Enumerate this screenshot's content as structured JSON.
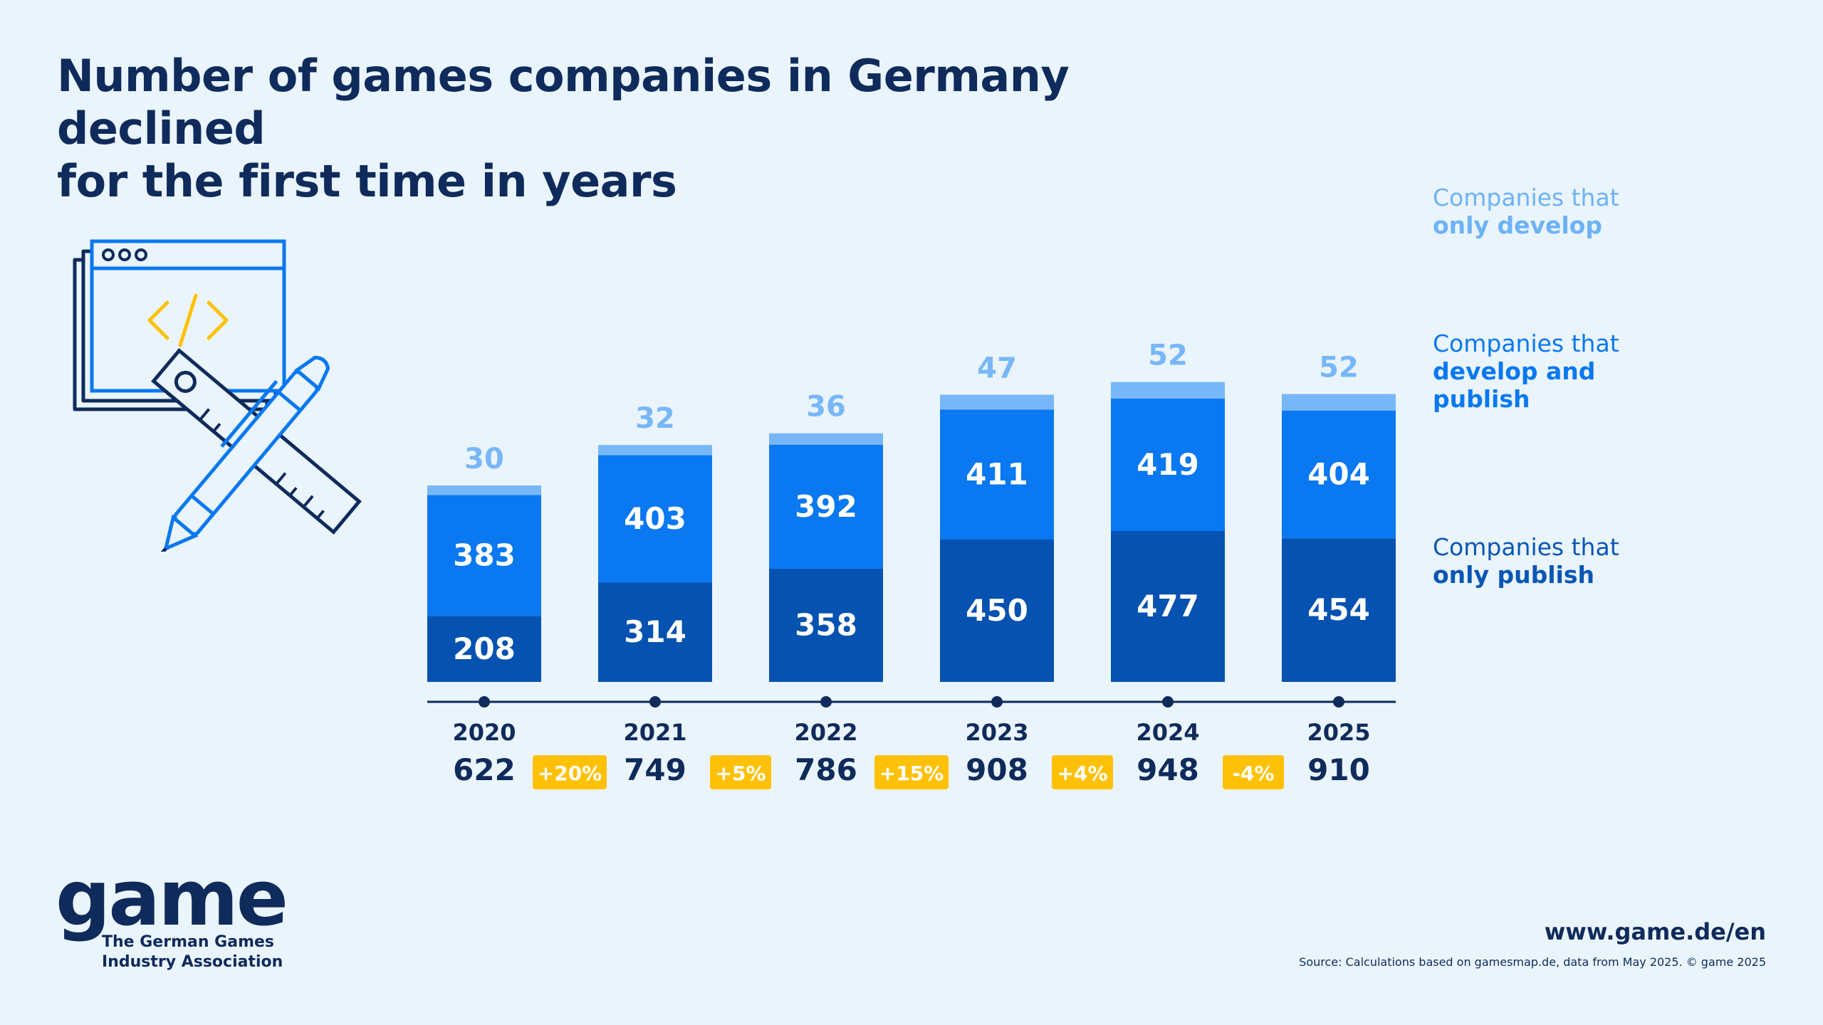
{
  "title_line1": "Number of games companies in Germany declined",
  "title_line2": "for the first time in years",
  "colors": {
    "only_develop": "#78b7f7",
    "develop_publish": "#0a78f0",
    "only_publish": "#0552b0",
    "growth_badge": "#ffc107",
    "text_dark": "#0f2b5b"
  },
  "legend": {
    "only_develop": {
      "line1": "Companies that",
      "line2": "only develop"
    },
    "develop_publish": {
      "line1": "Companies that",
      "line2": "develop and",
      "line3": "publish"
    },
    "only_publish": {
      "line1": "Companies that",
      "line2": "only publish"
    }
  },
  "chart_data": {
    "type": "bar",
    "stacked": true,
    "categories": [
      "2020",
      "2021",
      "2022",
      "2023",
      "2024",
      "2025"
    ],
    "series": [
      {
        "name": "Companies that only publish",
        "values": [
          208,
          314,
          358,
          450,
          477,
          454
        ]
      },
      {
        "name": "Companies that develop and publish",
        "values": [
          383,
          403,
          392,
          411,
          419,
          404
        ]
      },
      {
        "name": "Companies that only develop",
        "values": [
          30,
          32,
          36,
          47,
          52,
          52
        ]
      }
    ],
    "totals": [
      "622",
      "749",
      "786",
      "908",
      "948",
      "910"
    ],
    "changes": [
      "+20%",
      "+5%",
      "+15%",
      "+4%",
      "-4%"
    ]
  },
  "logo": {
    "word": "game",
    "sub_line1": "The German Games",
    "sub_line2": "Industry Association"
  },
  "website": "www.game.de/en",
  "source": "Source: Calculations based on gamesmap.de, data from May 2025. © game 2025"
}
